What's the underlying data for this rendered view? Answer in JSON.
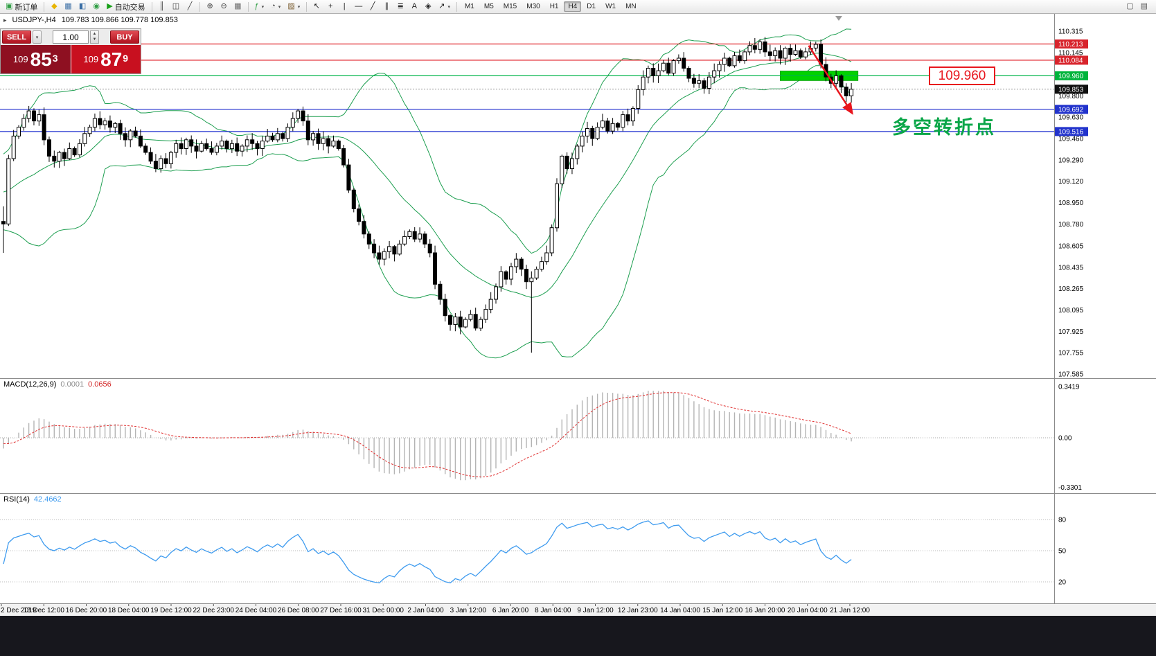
{
  "icons": {
    "collapse": "▸",
    "caret_down": "▾",
    "spin_up": "▲",
    "spin_down": "▼"
  },
  "colors": {
    "bollinger": "#1c9e4f",
    "macd_hist": "#b4b4b4",
    "macd_signal": "#e03030",
    "rsi_line": "#3e9bef",
    "bid_panel": "#8e1021",
    "ask_panel": "#c8101f",
    "highlight_green": "#00d200",
    "line_red": "#e02228",
    "line_blue": "#2030cf",
    "line_green": "#00b44a",
    "annotation_red": "#e8151d",
    "cn_green": "#0aa648"
  },
  "toolbar": {
    "groups": [
      [
        {
          "name": "new-order-button",
          "glyph": "▣",
          "glyph_color": "#2f9e44",
          "label": "新订单"
        }
      ],
      [
        {
          "name": "metaquotes-icon",
          "glyph": "◆",
          "glyph_color": "#e8b400"
        },
        {
          "name": "market-watch-icon",
          "glyph": "▦",
          "glyph_color": "#3a6ea5"
        },
        {
          "name": "data-window-icon",
          "glyph": "◧",
          "glyph_color": "#3a6ea5"
        },
        {
          "name": "web-community-icon",
          "glyph": "◉",
          "glyph_color": "#2f9e44"
        },
        {
          "name": "autotrading-button",
          "glyph": "▶",
          "glyph_color": "#18a018",
          "label": "自动交易"
        }
      ],
      [
        {
          "name": "bar-chart-icon",
          "glyph": "║",
          "glyph_color": "#444444"
        },
        {
          "name": "candle-chart-icon",
          "glyph": "◫",
          "glyph_color": "#444444"
        },
        {
          "name": "line-chart-icon",
          "glyph": "╱",
          "glyph_color": "#444444"
        }
      ],
      [
        {
          "name": "zoom-in-icon",
          "glyph": "⊕",
          "glyph_color": "#444444"
        },
        {
          "name": "zoom-out-icon",
          "glyph": "⊖",
          "glyph_color": "#444444"
        },
        {
          "name": "tile-windows-icon",
          "glyph": "▦",
          "glyph_color": "#6a6a6a"
        }
      ],
      [
        {
          "name": "indicators-icon",
          "glyph": "ƒ",
          "glyph_color": "#2f9e44",
          "caret": true
        },
        {
          "name": "periods-icon",
          "glyph": "◔",
          "glyph_color": "#444444",
          "caret": true
        },
        {
          "name": "templates-icon",
          "glyph": "▨",
          "glyph_color": "#7a5c2e",
          "caret": true
        }
      ],
      [
        {
          "name": "cursor-icon",
          "glyph": "↖",
          "glyph_color": "#222222"
        },
        {
          "name": "crosshair-icon",
          "glyph": "+",
          "glyph_color": "#222222"
        },
        {
          "name": "vertical-line-icon",
          "glyph": "|",
          "glyph_color": "#222222"
        },
        {
          "name": "horizontal-line-icon",
          "glyph": "—",
          "glyph_color": "#222222"
        },
        {
          "name": "trendline-icon",
          "glyph": "╱",
          "glyph_color": "#222222"
        },
        {
          "name": "channel-icon",
          "glyph": "∥",
          "glyph_color": "#222222"
        },
        {
          "name": "fibonacci-icon",
          "glyph": "≣",
          "glyph_color": "#222222"
        },
        {
          "name": "text-icon",
          "glyph": "A",
          "glyph_color": "#222222"
        },
        {
          "name": "label-icon",
          "glyph": "◈",
          "glyph_color": "#222222"
        },
        {
          "name": "arrows-icon",
          "glyph": "↗",
          "glyph_color": "#222222",
          "caret": true
        }
      ]
    ],
    "timeframes": {
      "items": [
        "M1",
        "M5",
        "M15",
        "M30",
        "H1",
        "H4",
        "D1",
        "W1",
        "MN"
      ],
      "active": "H4"
    },
    "right_icons": [
      {
        "name": "new-chart-icon",
        "glyph": "▢"
      },
      {
        "name": "profiles-icon",
        "glyph": "▤"
      }
    ]
  },
  "chart": {
    "symbol_title": "USDJPY-,H4",
    "ohlc_line": "109.783 109.866 109.778 109.853"
  },
  "trade_panel": {
    "sell_label": "SELL",
    "buy_label": "BUY",
    "volume": "1.00",
    "bid_prefix": "109",
    "bid_big": "85",
    "bid_sup": "3",
    "ask_prefix": "109",
    "ask_big": "87",
    "ask_sup": "9"
  },
  "annotations": {
    "price_box": "109.960",
    "turning_point": "多空转折点"
  },
  "chart_data": {
    "type": "candlestick",
    "symbol": "USDJPY",
    "timeframe": "H4",
    "history_seed": [
      109.2,
      109.05,
      108.9,
      108.95,
      109.1,
      109.25,
      109.2,
      109.1,
      109.0,
      108.88,
      108.92,
      109.05,
      109.18,
      109.3,
      109.24,
      109.15,
      109.05,
      108.95,
      108.85,
      108.8
    ],
    "closes": [
      108.78,
      109.3,
      109.48,
      109.55,
      109.62,
      109.68,
      109.6,
      109.65,
      109.45,
      109.32,
      109.28,
      109.35,
      109.3,
      109.38,
      109.33,
      109.42,
      109.5,
      109.55,
      109.62,
      109.57,
      109.6,
      109.55,
      109.58,
      109.5,
      109.45,
      109.52,
      109.48,
      109.4,
      109.35,
      109.28,
      109.22,
      109.3,
      109.26,
      109.35,
      109.42,
      109.38,
      109.45,
      109.4,
      109.36,
      109.42,
      109.38,
      109.35,
      109.4,
      109.44,
      109.38,
      109.42,
      109.36,
      109.4,
      109.45,
      109.42,
      109.38,
      109.44,
      109.48,
      109.45,
      109.5,
      109.46,
      109.55,
      109.62,
      109.68,
      109.6,
      109.45,
      109.5,
      109.42,
      109.46,
      109.4,
      109.44,
      109.38,
      109.25,
      109.05,
      108.9,
      108.8,
      108.7,
      108.62,
      108.55,
      108.5,
      108.56,
      108.6,
      108.54,
      108.62,
      108.68,
      108.72,
      108.66,
      108.7,
      108.62,
      108.55,
      108.3,
      108.18,
      108.05,
      107.98,
      108.04,
      107.96,
      108.02,
      108.06,
      107.95,
      108.02,
      108.1,
      108.18,
      108.28,
      108.4,
      108.34,
      108.44,
      108.5,
      108.42,
      108.32,
      108.35,
      108.42,
      108.48,
      108.55,
      108.75,
      109.1,
      109.32,
      109.22,
      109.3,
      109.4,
      109.48,
      109.54,
      109.46,
      109.55,
      109.6,
      109.52,
      109.58,
      109.55,
      109.65,
      109.6,
      109.7,
      109.85,
      109.95,
      110.02,
      109.96,
      110.0,
      110.06,
      109.98,
      110.08,
      110.1,
      110.02,
      109.94,
      109.9,
      109.92,
      109.86,
      109.95,
      110.0,
      110.05,
      110.1,
      110.04,
      110.12,
      110.08,
      110.15,
      110.2,
      110.17,
      110.23,
      110.15,
      110.12,
      110.16,
      110.1,
      110.18,
      110.13,
      110.16,
      110.11,
      110.15,
      110.18,
      110.21,
      110.05,
      109.95,
      109.9,
      109.96,
      109.87,
      109.8,
      109.853
    ],
    "specials": {
      "0": {
        "low": 108.55,
        "high": 108.92
      },
      "5": {
        "high": 109.72
      },
      "104": {
        "low": 107.755
      },
      "148": {
        "high": 110.26
      }
    },
    "bollinger": {
      "period": 20,
      "deviation": 2
    },
    "price_ticks": [
      "110.315",
      "110.145",
      "109.975",
      "109.800",
      "109.630",
      "109.460",
      "109.290",
      "109.120",
      "108.950",
      "108.780",
      "108.605",
      "108.435",
      "108.265",
      "108.095",
      "107.925",
      "107.755",
      "107.585"
    ],
    "price_badges": [
      {
        "text": "110.213",
        "color": "#d8242c"
      },
      {
        "text": "110.084",
        "color": "#d8242c"
      },
      {
        "text": "109.960",
        "color": "#00b43c"
      },
      {
        "text": "109.853",
        "color": "#101010"
      },
      {
        "text": "109.692",
        "color": "#2233cc"
      },
      {
        "text": "109.516",
        "color": "#2233cc"
      }
    ],
    "hlines": [
      {
        "price": 110.213,
        "color": "#e02228"
      },
      {
        "price": 110.084,
        "color": "#e02228"
      },
      {
        "price": 109.96,
        "color": "#00b44a"
      },
      {
        "price": 109.692,
        "color": "#2030cf"
      },
      {
        "price": 109.516,
        "color": "#2030cf"
      }
    ],
    "current_price": 109.853,
    "highlight_zone": {
      "bar_start": 153,
      "bar_end": 168.3,
      "price_top": 109.997,
      "price_bottom": 109.922,
      "color": "#00d200"
    },
    "trend_arrow": {
      "bar_start": 158.6,
      "price_start": 110.2,
      "bar_end": 167.2,
      "price_end": 109.66,
      "color": "#e8151d"
    },
    "time_labels": [
      "2 Dec 2019",
      "13 Dec 12:00",
      "16 Dec 20:00",
      "18 Dec 04:00",
      "19 Dec 12:00",
      "22 Dec 23:00",
      "24 Dec 04:00",
      "26 Dec 08:00",
      "27 Dec 16:00",
      "31 Dec 00:00",
      "2 Jan 04:00",
      "3 Jan 12:00",
      "6 Jan 20:00",
      "8 Jan 04:00",
      "9 Jan 12:00",
      "12 Jan 23:00",
      "14 Jan 04:00",
      "15 Jan 12:00",
      "16 Jan 20:00",
      "20 Jan 04:00",
      "21 Jan 12:00"
    ],
    "macd": {
      "label": "MACD(12,26,9)",
      "value_main": "0.0001",
      "value_signal": "0.0656",
      "axis_labels": [
        "0.3419",
        "0.00",
        "-0.3301"
      ],
      "fast": 12,
      "slow": 26,
      "signal_period": 9
    },
    "rsi": {
      "label": "RSI(14)",
      "value": "42.4662",
      "period": 14,
      "levels": [
        80,
        50,
        20
      ]
    }
  }
}
